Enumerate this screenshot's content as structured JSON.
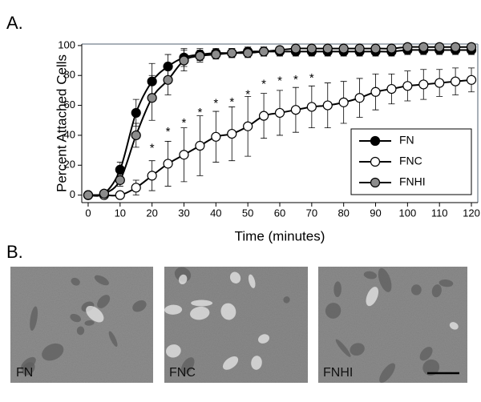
{
  "chart_data": {
    "type": "line",
    "panel_label": "A.",
    "x_label": "Time (minutes)",
    "y_label": "Percent Attached Cells",
    "xlim": [
      -2,
      122
    ],
    "ylim": [
      -5,
      101
    ],
    "xticks": [
      0,
      10,
      20,
      30,
      40,
      50,
      60,
      70,
      80,
      90,
      100,
      110,
      120
    ],
    "yticks": [
      0,
      20,
      40,
      60,
      80,
      100
    ],
    "grid": false,
    "legend": "lower right",
    "x": [
      0,
      5,
      10,
      15,
      20,
      25,
      30,
      35,
      40,
      45,
      50,
      55,
      60,
      65,
      70,
      75,
      80,
      85,
      90,
      95,
      100,
      105,
      110,
      115,
      120
    ],
    "series": [
      {
        "name": "FN",
        "color": "#000000",
        "values": [
          0,
          1,
          17,
          55,
          76,
          86,
          92,
          94,
          95,
          95,
          96,
          96,
          96,
          96,
          96,
          96,
          96,
          96,
          96,
          96,
          97,
          97,
          97,
          97,
          97
        ],
        "errors": [
          null,
          null,
          5,
          9,
          12,
          8,
          6,
          4,
          3,
          3,
          3,
          3,
          3,
          3,
          3,
          3,
          3,
          3,
          3,
          3,
          3,
          3,
          3,
          3,
          3
        ]
      },
      {
        "name": "FNC",
        "color": "#ffffff",
        "values": [
          0,
          0,
          0,
          5,
          13,
          21,
          27,
          33,
          39,
          41,
          46,
          53,
          55,
          57,
          59,
          60,
          62,
          65,
          69,
          71,
          73,
          74,
          75,
          76,
          77
        ],
        "errors": [
          null,
          null,
          null,
          5,
          10,
          15,
          18,
          20,
          17,
          18,
          20,
          15,
          15,
          15,
          14,
          15,
          14,
          13,
          12,
          10,
          10,
          10,
          9,
          9,
          8
        ]
      },
      {
        "name": "FNHI",
        "color": "#8c8c8c",
        "values": [
          0,
          1,
          10,
          40,
          65,
          77,
          90,
          93,
          94,
          95,
          95,
          96,
          97,
          98,
          98,
          98,
          98,
          98,
          98,
          98,
          99,
          99,
          99,
          99,
          99
        ],
        "errors": [
          null,
          null,
          4,
          8,
          15,
          10,
          7,
          4,
          3,
          3,
          3,
          3,
          2,
          2,
          2,
          2,
          2,
          2,
          2,
          2,
          2,
          2,
          2,
          2,
          2
        ]
      }
    ],
    "annotations": [
      {
        "text": "*",
        "x": 20,
        "y": 31
      },
      {
        "text": "*",
        "x": 25,
        "y": 42
      },
      {
        "text": "*",
        "x": 30,
        "y": 48
      },
      {
        "text": "*",
        "x": 35,
        "y": 55
      },
      {
        "text": "*",
        "x": 40,
        "y": 61
      },
      {
        "text": "*",
        "x": 45,
        "y": 62
      },
      {
        "text": "*",
        "x": 50,
        "y": 67
      },
      {
        "text": "*",
        "x": 55,
        "y": 74
      },
      {
        "text": "*",
        "x": 60,
        "y": 76
      },
      {
        "text": "*",
        "x": 65,
        "y": 77
      },
      {
        "text": "*",
        "x": 70,
        "y": 78
      }
    ]
  },
  "images": {
    "panel_label": "B.",
    "labels": [
      "FN",
      "FNC",
      "FNHI"
    ]
  }
}
